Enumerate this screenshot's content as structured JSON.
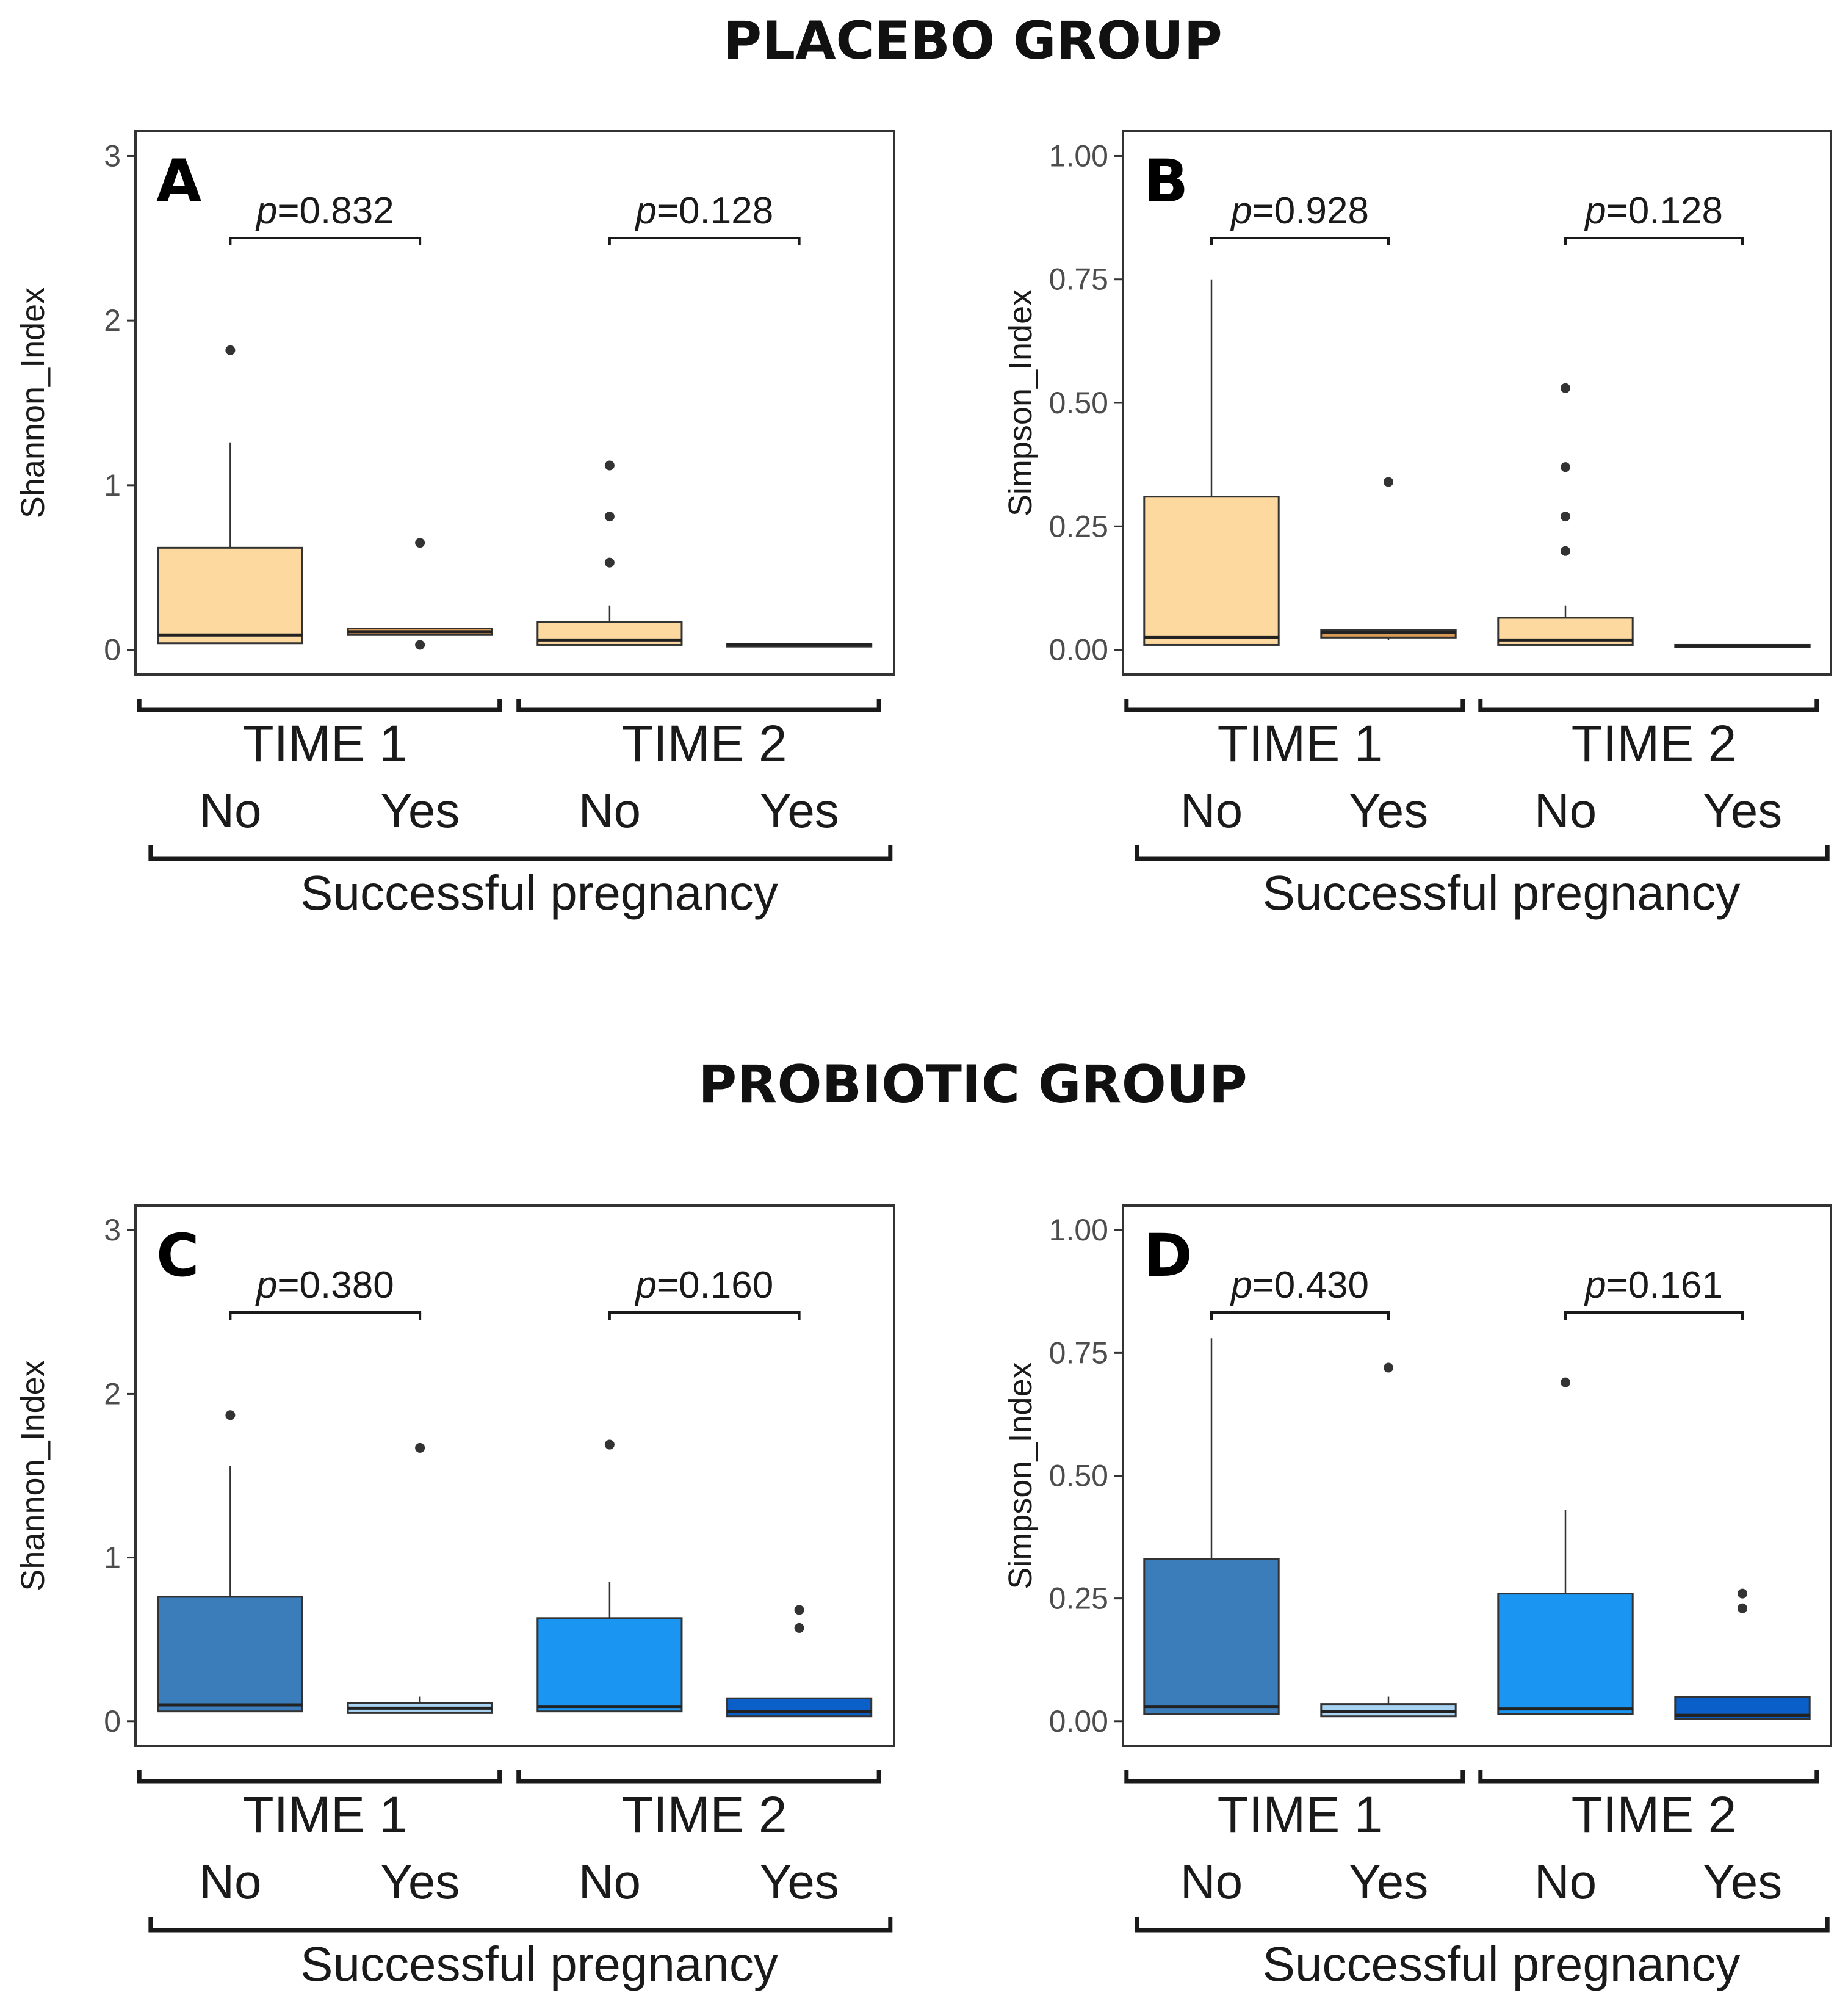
{
  "groups": {
    "placebo_title": "PLACEBO GROUP",
    "probiotic_title": "PROBIOTIC GROUP"
  },
  "colors": {
    "placebo_fill": "#FDD9A0",
    "placebo_yes": "#D99A55",
    "probiotic_t1_no": "#3B7DBA",
    "probiotic_t1_yes": "#A9D3F2",
    "probiotic_t2_no": "#1A96F2",
    "probiotic_t2_yes": "#0A5FC8"
  },
  "chart_data": [
    {
      "panel": "A",
      "type": "box",
      "group": "PLACEBO GROUP",
      "ylabel": "Shannon_Index",
      "ylim": [
        -0.15,
        3.15
      ],
      "yticks": [
        0,
        1,
        2,
        3
      ],
      "ytick_labels": [
        "0",
        "1",
        "2",
        "3"
      ],
      "time_labels": [
        "TIME 1",
        "TIME 2"
      ],
      "categories": [
        "No",
        "Yes",
        "No",
        "Yes"
      ],
      "xlabel": "Successful pregnancy",
      "p_values": [
        {
          "p": "p",
          "text": "=0.832"
        },
        {
          "p": "p",
          "text": "=0.128"
        }
      ],
      "boxes": [
        {
          "time": "TIME 1",
          "category": "No",
          "q1": 0.04,
          "median": 0.09,
          "q3": 0.62,
          "whisker_low": 0.04,
          "whisker_high": 1.26,
          "outliers": [
            1.82
          ],
          "color": "#FDD9A0"
        },
        {
          "time": "TIME 1",
          "category": "Yes",
          "q1": 0.09,
          "median": 0.11,
          "q3": 0.13,
          "whisker_low": 0.09,
          "whisker_high": 0.13,
          "outliers": [
            0.65,
            0.03
          ],
          "color": "#D99A55"
        },
        {
          "time": "TIME 2",
          "category": "No",
          "q1": 0.03,
          "median": 0.06,
          "q3": 0.17,
          "whisker_low": 0.03,
          "whisker_high": 0.27,
          "outliers": [
            1.12,
            0.81,
            0.53
          ],
          "color": "#FDD9A0"
        },
        {
          "time": "TIME 2",
          "category": "Yes",
          "q1": 0.02,
          "median": 0.03,
          "q3": 0.035,
          "whisker_low": 0.02,
          "whisker_high": 0.035,
          "outliers": [],
          "color": "#D99A55"
        }
      ]
    },
    {
      "panel": "B",
      "type": "box",
      "group": "PLACEBO GROUP",
      "ylabel": "Simpson_Index",
      "ylim": [
        -0.05,
        1.05
      ],
      "yticks": [
        0,
        0.25,
        0.5,
        0.75,
        1.0
      ],
      "ytick_labels": [
        "0.00",
        "0.25",
        "0.50",
        "0.75",
        "1.00"
      ],
      "time_labels": [
        "TIME 1",
        "TIME 2"
      ],
      "categories": [
        "No",
        "Yes",
        "No",
        "Yes"
      ],
      "xlabel": "Successful pregnancy",
      "p_values": [
        {
          "p": "p",
          "text": "=0.928"
        },
        {
          "p": "p",
          "text": "=0.128"
        }
      ],
      "boxes": [
        {
          "time": "TIME 1",
          "category": "No",
          "q1": 0.01,
          "median": 0.025,
          "q3": 0.31,
          "whisker_low": 0.01,
          "whisker_high": 0.75,
          "outliers": [],
          "color": "#FDD9A0"
        },
        {
          "time": "TIME 1",
          "category": "Yes",
          "q1": 0.025,
          "median": 0.035,
          "q3": 0.04,
          "whisker_low": 0.02,
          "whisker_high": 0.04,
          "outliers": [
            0.34
          ],
          "color": "#D99A55"
        },
        {
          "time": "TIME 2",
          "category": "No",
          "q1": 0.01,
          "median": 0.02,
          "q3": 0.065,
          "whisker_low": 0.01,
          "whisker_high": 0.09,
          "outliers": [
            0.53,
            0.37,
            0.27,
            0.2
          ],
          "color": "#FDD9A0"
        },
        {
          "time": "TIME 2",
          "category": "Yes",
          "q1": 0.005,
          "median": 0.008,
          "q3": 0.01,
          "whisker_low": 0.005,
          "whisker_high": 0.01,
          "outliers": [],
          "color": "#D99A55"
        }
      ]
    },
    {
      "panel": "C",
      "type": "box",
      "group": "PROBIOTIC GROUP",
      "ylabel": "Shannon_Index",
      "ylim": [
        -0.15,
        3.15
      ],
      "yticks": [
        0,
        1,
        2,
        3
      ],
      "ytick_labels": [
        "0",
        "1",
        "2",
        "3"
      ],
      "time_labels": [
        "TIME 1",
        "TIME 2"
      ],
      "categories": [
        "No",
        "Yes",
        "No",
        "Yes"
      ],
      "xlabel": "Successful pregnancy",
      "p_values": [
        {
          "p": "p",
          "text": "=0.380"
        },
        {
          "p": "p",
          "text": "=0.160"
        }
      ],
      "boxes": [
        {
          "time": "TIME 1",
          "category": "No",
          "q1": 0.06,
          "median": 0.1,
          "q3": 0.76,
          "whisker_low": 0.06,
          "whisker_high": 1.56,
          "outliers": [
            1.87
          ],
          "color": "#3B7DBA"
        },
        {
          "time": "TIME 1",
          "category": "Yes",
          "q1": 0.05,
          "median": 0.08,
          "q3": 0.11,
          "whisker_low": 0.05,
          "whisker_high": 0.15,
          "outliers": [
            1.67
          ],
          "color": "#A9D3F2"
        },
        {
          "time": "TIME 2",
          "category": "No",
          "q1": 0.06,
          "median": 0.09,
          "q3": 0.63,
          "whisker_low": 0.06,
          "whisker_high": 0.85,
          "outliers": [
            1.69
          ],
          "color": "#1A96F2"
        },
        {
          "time": "TIME 2",
          "category": "Yes",
          "q1": 0.03,
          "median": 0.06,
          "q3": 0.14,
          "whisker_low": 0.03,
          "whisker_high": 0.14,
          "outliers": [
            0.68,
            0.57
          ],
          "color": "#0A5FC8"
        }
      ]
    },
    {
      "panel": "D",
      "type": "box",
      "group": "PROBIOTIC GROUP",
      "ylabel": "Simpson_Index",
      "ylim": [
        -0.05,
        1.05
      ],
      "yticks": [
        0,
        0.25,
        0.5,
        0.75,
        1.0
      ],
      "ytick_labels": [
        "0.00",
        "0.25",
        "0.50",
        "0.75",
        "1.00"
      ],
      "time_labels": [
        "TIME 1",
        "TIME 2"
      ],
      "categories": [
        "No",
        "Yes",
        "No",
        "Yes"
      ],
      "xlabel": "Successful pregnancy",
      "p_values": [
        {
          "p": "p",
          "text": "=0.430"
        },
        {
          "p": "p",
          "text": "=0.161"
        }
      ],
      "boxes": [
        {
          "time": "TIME 1",
          "category": "No",
          "q1": 0.015,
          "median": 0.03,
          "q3": 0.33,
          "whisker_low": 0.015,
          "whisker_high": 0.78,
          "outliers": [],
          "color": "#3B7DBA"
        },
        {
          "time": "TIME 1",
          "category": "Yes",
          "q1": 0.01,
          "median": 0.02,
          "q3": 0.035,
          "whisker_low": 0.01,
          "whisker_high": 0.05,
          "outliers": [
            0.72
          ],
          "color": "#A9D3F2"
        },
        {
          "time": "TIME 2",
          "category": "No",
          "q1": 0.015,
          "median": 0.025,
          "q3": 0.26,
          "whisker_low": 0.015,
          "whisker_high": 0.43,
          "outliers": [
            0.69
          ],
          "color": "#1A96F2"
        },
        {
          "time": "TIME 2",
          "category": "Yes",
          "q1": 0.005,
          "median": 0.012,
          "q3": 0.05,
          "whisker_low": 0.005,
          "whisker_high": 0.05,
          "outliers": [
            0.26,
            0.23
          ],
          "color": "#0A5FC8"
        }
      ]
    }
  ]
}
